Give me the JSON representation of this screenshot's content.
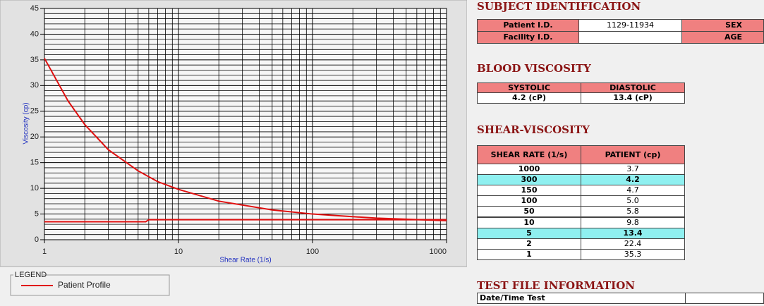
{
  "chart_data": {
    "type": "line",
    "xlabel": "Shear Rate (1/s)",
    "ylabel": "Viscosity (cp)",
    "xscale": "log",
    "xlim": [
      1,
      1000
    ],
    "ylim": [
      0,
      45
    ],
    "xticks": [
      1,
      10,
      100,
      1000
    ],
    "yticks": [
      0,
      5,
      10,
      15,
      20,
      25,
      30,
      35,
      40,
      45
    ],
    "grid": true,
    "minor_grid": true,
    "legend_title": "LEGEND",
    "legend": "bottom-left",
    "series": [
      {
        "name": "Patient Profile",
        "color": "#e01010",
        "x": [
          1,
          1.5,
          2,
          3,
          5,
          7,
          10,
          20,
          50,
          100,
          150,
          300,
          1000
        ],
        "values": [
          35.3,
          27,
          22.4,
          17.5,
          13.4,
          11.3,
          9.8,
          7.5,
          5.8,
          5.0,
          4.7,
          4.2,
          3.7
        ]
      },
      {
        "color": "#e01010",
        "x": [
          1,
          5.7,
          6,
          1000
        ],
        "values": [
          3.5,
          3.5,
          3.9,
          3.9
        ]
      }
    ]
  },
  "subject": {
    "title": "SUBJECT IDENTIFICATION",
    "rows": [
      {
        "label": "Patient I.D.",
        "value": "1129-11934",
        "label2": "SEX"
      },
      {
        "label": "Facility I.D.",
        "label2": "AGE"
      }
    ]
  },
  "blood": {
    "title": "BLOOD VISCOSITY",
    "headers": [
      "SYSTOLIC",
      "DIASTOLIC"
    ],
    "values": [
      "4.2 (cP)",
      "13.4 (cP)"
    ]
  },
  "shear": {
    "title": "SHEAR-VISCOSITY",
    "headers": [
      "SHEAR RATE (1/s)",
      "PATIENT (cp)"
    ],
    "rows": [
      [
        "1000",
        "3.7"
      ],
      [
        "300",
        "4.2"
      ],
      [
        "150",
        "4.7"
      ],
      [
        "100",
        "5.0"
      ],
      [
        "50",
        "5.8"
      ],
      [
        "10",
        "9.8"
      ],
      [
        "5",
        "13.4"
      ],
      [
        "2",
        "22.4"
      ],
      [
        "1",
        "35.3"
      ]
    ],
    "highlight_rows": [
      1,
      6
    ]
  },
  "test_file": {
    "title": "TEST FILE INFORMATION",
    "rows": [
      "Date/Time Test"
    ]
  }
}
